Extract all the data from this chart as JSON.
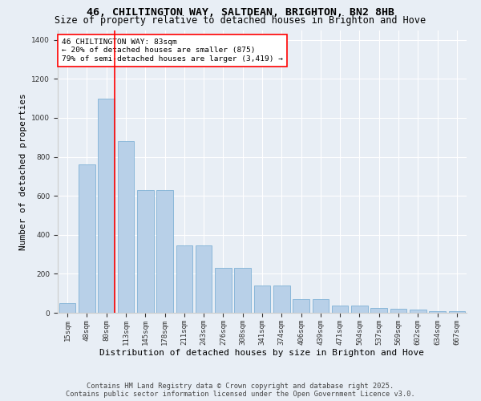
{
  "title_line1": "46, CHILTINGTON WAY, SALTDEAN, BRIGHTON, BN2 8HB",
  "title_line2": "Size of property relative to detached houses in Brighton and Hove",
  "xlabel": "Distribution of detached houses by size in Brighton and Hove",
  "ylabel": "Number of detached properties",
  "categories": [
    "15sqm",
    "48sqm",
    "80sqm",
    "113sqm",
    "145sqm",
    "178sqm",
    "211sqm",
    "243sqm",
    "276sqm",
    "308sqm",
    "341sqm",
    "374sqm",
    "406sqm",
    "439sqm",
    "471sqm",
    "504sqm",
    "537sqm",
    "569sqm",
    "602sqm",
    "634sqm",
    "667sqm"
  ],
  "values": [
    50,
    760,
    1100,
    880,
    630,
    630,
    345,
    345,
    230,
    230,
    140,
    140,
    70,
    70,
    35,
    35,
    25,
    20,
    15,
    10,
    10
  ],
  "bar_color": "#b8d0e8",
  "bar_edge_color": "#6fa8d0",
  "red_line_index": 2,
  "annotation_line1": "46 CHILTINGTON WAY: 83sqm",
  "annotation_line2": "← 20% of detached houses are smaller (875)",
  "annotation_line3": "79% of semi-detached houses are larger (3,419) →",
  "ylim": [
    0,
    1450
  ],
  "yticks": [
    0,
    200,
    400,
    600,
    800,
    1000,
    1200,
    1400
  ],
  "footer_line1": "Contains HM Land Registry data © Crown copyright and database right 2025.",
  "footer_line2": "Contains public sector information licensed under the Open Government Licence v3.0.",
  "background_color": "#e8eef5",
  "grid_color": "#ffffff",
  "title_fontsize": 9.5,
  "subtitle_fontsize": 8.5,
  "axis_label_fontsize": 8,
  "tick_fontsize": 6.5,
  "annot_fontsize": 6.8,
  "footer_fontsize": 6.2
}
